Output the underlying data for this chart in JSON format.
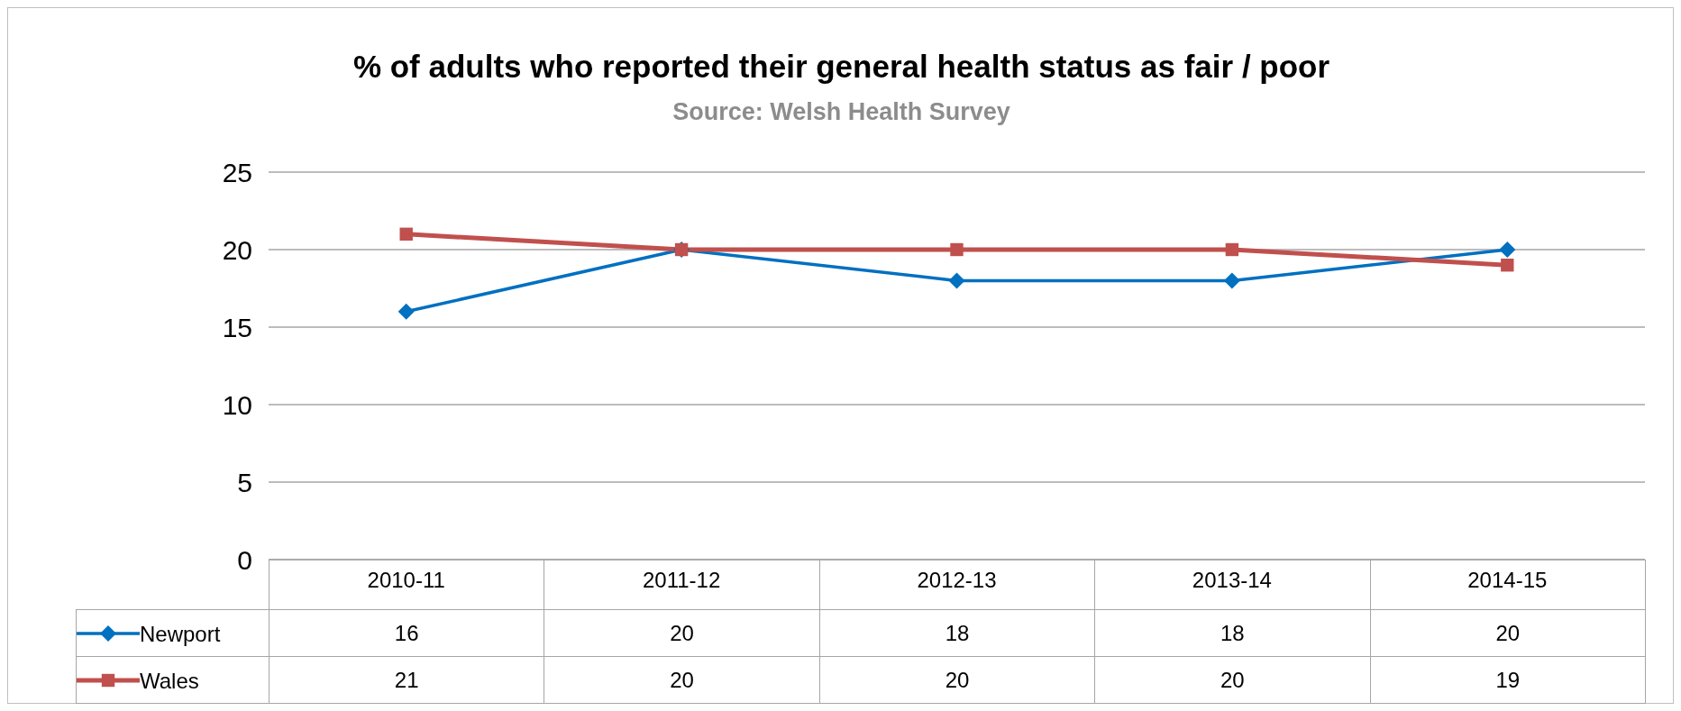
{
  "chart_data": {
    "type": "line",
    "title": "% of adults who reported their general health status as fair / poor",
    "subtitle": "Source: Welsh Health Survey",
    "categories": [
      "2010-11",
      "2011-12",
      "2012-13",
      "2013-14",
      "2014-15"
    ],
    "series": [
      {
        "name": "Newport",
        "color": "#0070c0",
        "marker": "diamond",
        "values": [
          16,
          20,
          18,
          18,
          20
        ]
      },
      {
        "name": "Wales",
        "color": "#c0504d",
        "marker": "square",
        "values": [
          21,
          20,
          20,
          20,
          19
        ]
      }
    ],
    "ylim": [
      0,
      25
    ],
    "yticks": [
      0,
      5,
      10,
      15,
      20,
      25
    ],
    "grid": "y",
    "legend": "bottom",
    "data_labels": true
  }
}
